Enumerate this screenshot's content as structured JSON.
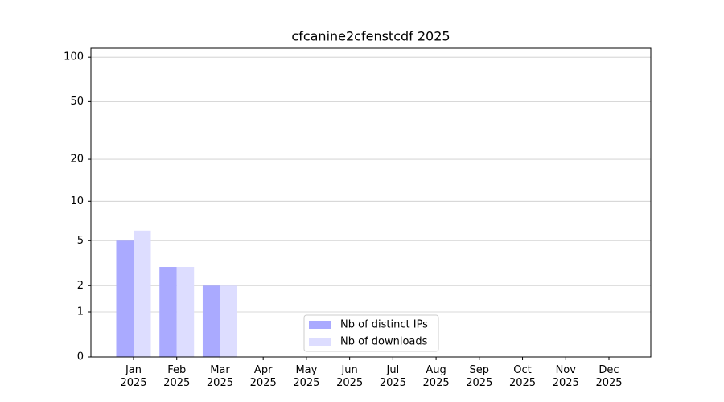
{
  "chart_data": {
    "type": "bar",
    "title": "cfcanine2cfenstcdf 2025",
    "x": [
      "Jan 2025",
      "Feb 2025",
      "Mar 2025",
      "Apr 2025",
      "May 2025",
      "Jun 2025",
      "Jul 2025",
      "Aug 2025",
      "Sep 2025",
      "Oct 2025",
      "Nov 2025",
      "Dec 2025"
    ],
    "series": [
      {
        "name": "Nb of distinct IPs",
        "color": "#aaaaff",
        "values": [
          5,
          3,
          2,
          0,
          0,
          0,
          0,
          0,
          0,
          0,
          0,
          0
        ]
      },
      {
        "name": "Nb of downloads",
        "color": "#ddddff",
        "values": [
          6,
          3,
          2,
          0,
          0,
          0,
          0,
          0,
          0,
          0,
          0,
          0
        ]
      }
    ],
    "y_scale": "log1p",
    "ylim": [
      0,
      115
    ],
    "yticks": [
      0,
      1,
      2,
      5,
      10,
      20,
      50,
      100
    ],
    "grid": true,
    "legend": "lower center"
  }
}
